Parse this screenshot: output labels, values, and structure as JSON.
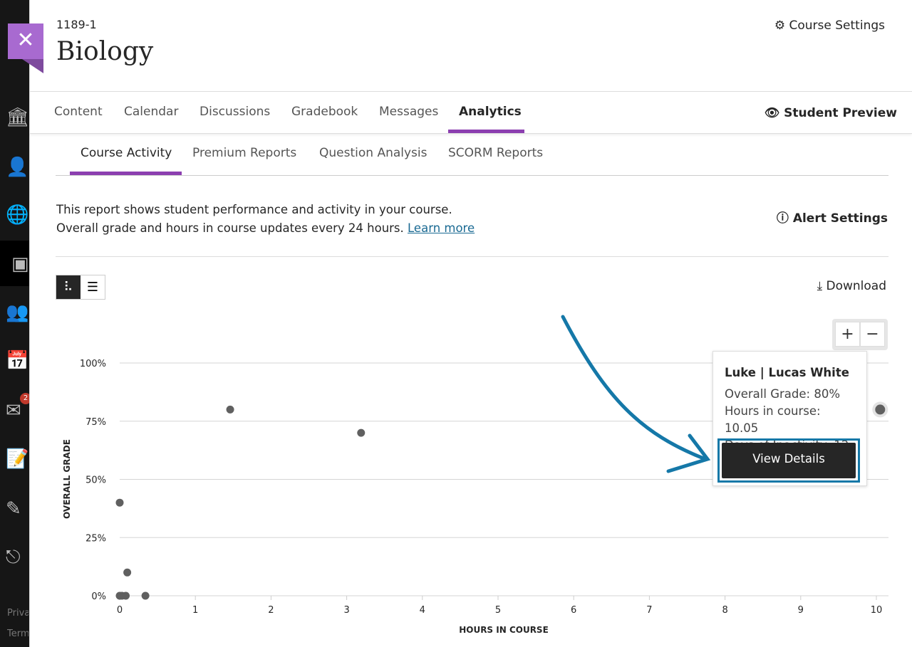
{
  "sidebar": {
    "items": [
      "institution-icon",
      "profile-icon",
      "globe-icon",
      "courses-icon",
      "groups-icon",
      "calendar-icon",
      "messages-icon",
      "grades-icon",
      "tools-icon",
      "signout-icon"
    ],
    "messages_badge": "2",
    "footer": [
      "Privacy",
      "Terms"
    ]
  },
  "header": {
    "course_code": "1189-1",
    "course_title": "Biology",
    "close_label": "✕",
    "course_settings": "Course Settings"
  },
  "nav": {
    "tabs": [
      "Content",
      "Calendar",
      "Discussions",
      "Gradebook",
      "Messages",
      "Analytics"
    ],
    "selected": "Analytics",
    "student_preview": "Student Preview"
  },
  "subnav": {
    "tabs": [
      "Course Activity",
      "Premium Reports",
      "Question Analysis",
      "SCORM Reports"
    ],
    "selected": "Course Activity"
  },
  "report": {
    "line1": "This report shows student performance and activity in your course.",
    "line2": "Overall grade and hours in course updates every 24 hours.",
    "learn_more": "Learn more",
    "alert_settings": "Alert Settings",
    "download": "Download",
    "zoom_in": "+",
    "zoom_out": "−"
  },
  "colors": {
    "accent": "#8c3fb0",
    "point": "#606060",
    "highlight": "#1578a8"
  },
  "chart_data": {
    "type": "scatter",
    "xlabel": "HOURS IN COURSE",
    "ylabel": "OVERALL GRADE",
    "xlim": [
      0,
      10
    ],
    "ylim": [
      0,
      100
    ],
    "xticks": [
      "0",
      "1",
      "2",
      "3",
      "4",
      "5",
      "6",
      "7",
      "8",
      "9",
      "10"
    ],
    "yticks": [
      "0%",
      "25%",
      "50%",
      "75%",
      "100%"
    ],
    "grid": "horizontal",
    "points": [
      {
        "x": 0,
        "y": 40
      },
      {
        "x": 0.1,
        "y": 10
      },
      {
        "x": 0,
        "y": 0
      },
      {
        "x": 0.03,
        "y": 0
      },
      {
        "x": 0.08,
        "y": 0
      },
      {
        "x": 0.34,
        "y": 0
      },
      {
        "x": 1.46,
        "y": 80
      },
      {
        "x": 3.19,
        "y": 70
      },
      {
        "x": 10.05,
        "y": 80
      }
    ]
  },
  "tooltip": {
    "name": "Luke | Lucas White",
    "grade": "Overall Grade: 80%",
    "hours": "Hours in course: 10.05",
    "inactivity": "Days of Inactivity: 12",
    "button": "View Details"
  }
}
